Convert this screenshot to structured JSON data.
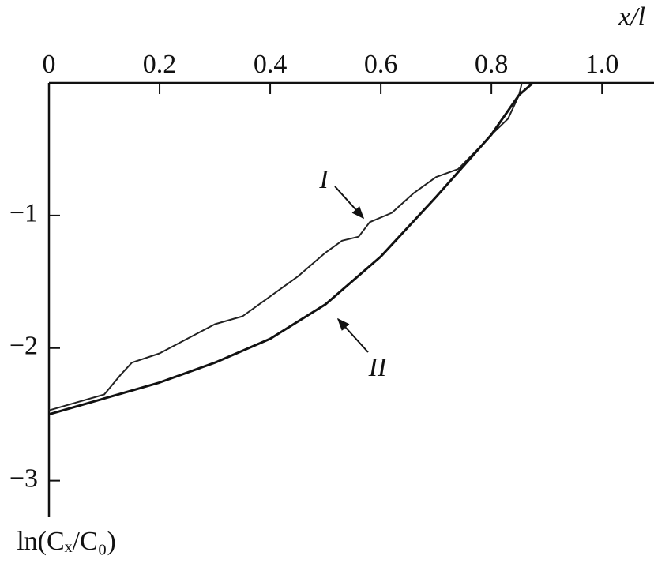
{
  "chart_data": {
    "type": "line",
    "x_label": "x/l",
    "y_label": "ln(Cₓ/C₀)",
    "xlim": [
      0,
      1.094
    ],
    "ylim": [
      -3.3,
      0
    ],
    "xticks": [
      0,
      0.2,
      0.4,
      0.6,
      0.8,
      {
        "value": 1,
        "label": "1.0"
      }
    ],
    "yticks": [
      {
        "value": -1,
        "label": "−1"
      },
      {
        "value": -2,
        "label": "−2"
      },
      {
        "value": -3,
        "label": "−3"
      }
    ],
    "grid": false,
    "series": [
      {
        "name": "I",
        "color": "#222",
        "x": [
          0,
          0.05,
          0.1,
          0.13,
          0.15,
          0.2,
          0.25,
          0.3,
          0.35,
          0.4,
          0.45,
          0.5,
          0.53,
          0.56,
          0.58,
          0.62,
          0.66,
          0.7,
          0.74,
          0.78,
          0.8,
          0.83,
          0.85,
          0.855
        ],
        "values": [
          -2.47,
          -2.41,
          -2.35,
          -2.2,
          -2.11,
          -2.04,
          -1.93,
          -1.82,
          -1.76,
          -1.61,
          -1.46,
          -1.28,
          -1.19,
          -1.16,
          -1.05,
          -0.98,
          -0.83,
          -0.71,
          -0.65,
          -0.48,
          -0.39,
          -0.27,
          -0.09,
          0
        ]
      },
      {
        "name": "II",
        "color": "#111",
        "x": [
          0,
          0.1,
          0.2,
          0.3,
          0.4,
          0.5,
          0.6,
          0.7,
          0.8,
          0.85,
          0.875
        ],
        "values": [
          -2.5,
          -2.38,
          -2.26,
          -2.11,
          -1.93,
          -1.67,
          -1.31,
          -0.86,
          -0.39,
          -0.09,
          0
        ]
      }
    ]
  }
}
